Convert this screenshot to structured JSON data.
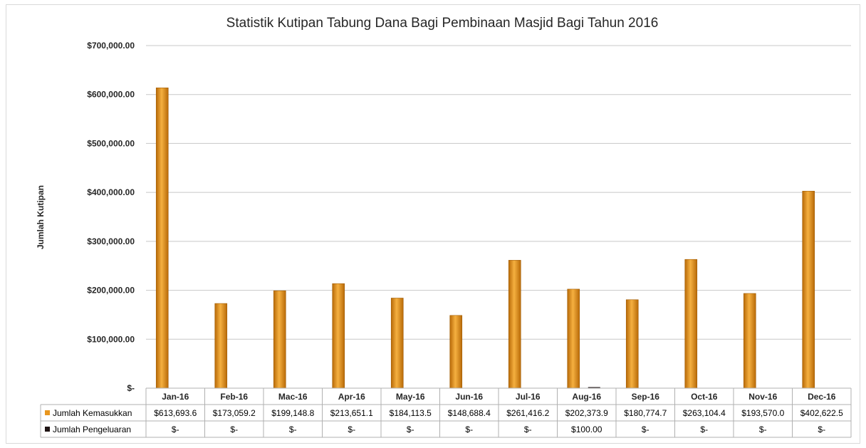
{
  "chart_data": {
    "type": "bar",
    "title": "Statistik Kutipan Tabung Dana Bagi Pembinaan Masjid Bagi Tahun 2016",
    "ylabel": "Jumlah Kutipan",
    "xlabel": "",
    "ylim": [
      0,
      700000
    ],
    "yticks": [
      0,
      100000,
      200000,
      300000,
      400000,
      500000,
      600000,
      700000
    ],
    "ytick_labels": [
      "$-",
      "$100,000.00",
      "$200,000.00",
      "$300,000.00",
      "$400,000.00",
      "$500,000.00",
      "$600,000.00",
      "$700,000.00"
    ],
    "grid": true,
    "legend_placement": "data-table",
    "categories": [
      "Jan-16",
      "Feb-16",
      "Mac-16",
      "Apr-16",
      "May-16",
      "Jun-16",
      "Jul-16",
      "Aug-16",
      "Sep-16",
      "Oct-16",
      "Nov-16",
      "Dec-16"
    ],
    "series": [
      {
        "name": "Jumlah Kemasukkan",
        "color": "#e8961e",
        "values": [
          613693.6,
          173059.2,
          199148.8,
          213651.1,
          184113.5,
          148688.4,
          261416.2,
          202373.9,
          180774.7,
          263104.4,
          193570.0,
          402622.5
        ],
        "labels": [
          "$613,693.6",
          "$173,059.2",
          "$199,148.8",
          "$213,651.1",
          "$184,113.5",
          "$148,688.4",
          "$261,416.2",
          "$202,373.9",
          "$180,774.7",
          "$263,104.4",
          "$193,570.0",
          "$402,622.5"
        ]
      },
      {
        "name": "Jumlah Pengeluaran",
        "color": "#1f1414",
        "values": [
          0,
          0,
          0,
          0,
          0,
          0,
          0,
          100,
          0,
          0,
          0,
          0
        ],
        "labels": [
          "$-",
          "$-",
          "$-",
          "$-",
          "$-",
          "$-",
          "$-",
          "$100.00",
          "$-",
          "$-",
          "$-",
          "$-"
        ]
      }
    ]
  }
}
